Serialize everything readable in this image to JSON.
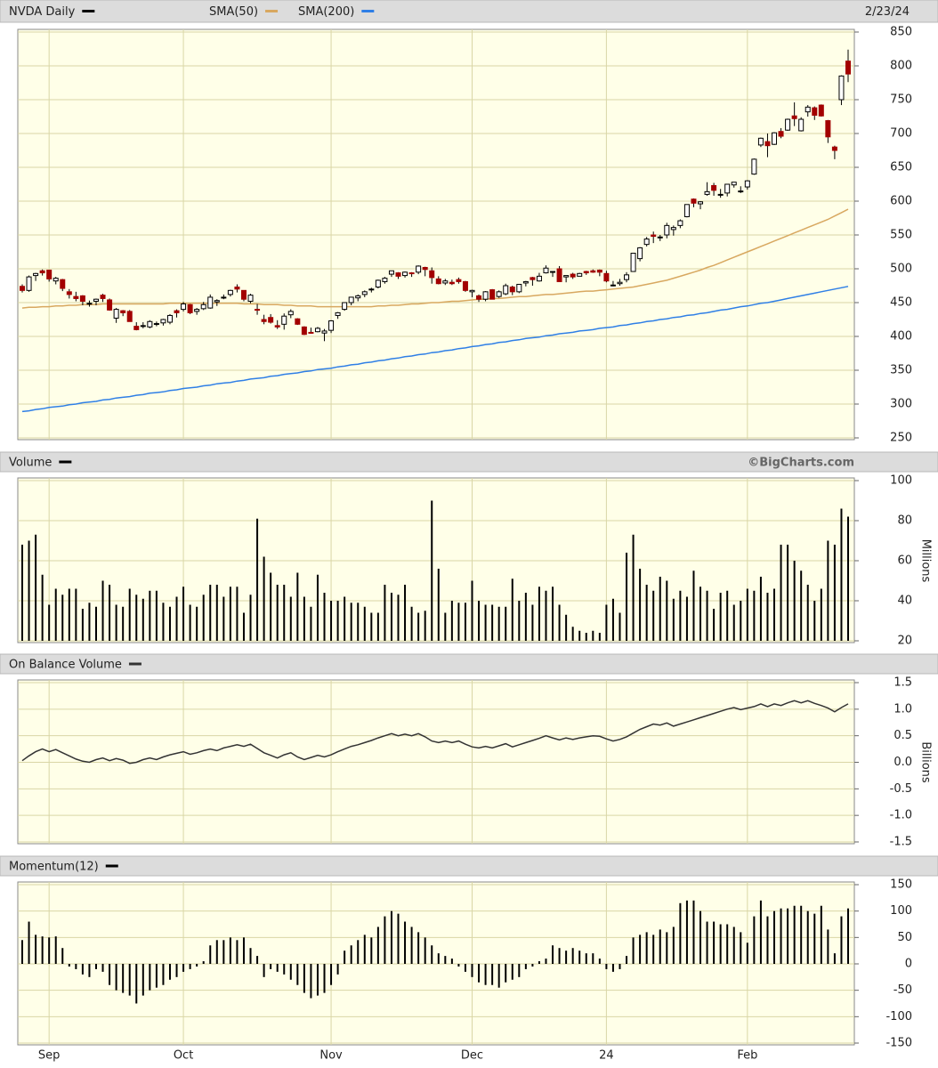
{
  "chart_data": [
    {
      "type": "candlestick",
      "title": "NVDA Daily",
      "color": "#000000",
      "date": "2/23/24",
      "categories": [
        null,
        null,
        null,
        null,
        "Sep",
        null,
        null,
        null,
        null,
        null,
        null,
        null,
        null,
        null,
        null,
        null,
        null,
        null,
        null,
        null,
        null,
        null,
        null,
        null,
        "Oct",
        null,
        null,
        null,
        null,
        null,
        null,
        null,
        null,
        null,
        null,
        null,
        null,
        null,
        null,
        null,
        null,
        null,
        null,
        null,
        null,
        null,
        "Nov",
        null,
        null,
        null,
        null,
        null,
        null,
        null,
        null,
        null,
        null,
        null,
        null,
        null,
        null,
        null,
        null,
        null,
        null,
        null,
        null,
        "Dec",
        null,
        null,
        null,
        null,
        null,
        null,
        null,
        null,
        null,
        null,
        null,
        null,
        null,
        null,
        null,
        null,
        null,
        null,
        null,
        "24",
        null,
        null,
        null,
        null,
        null,
        null,
        null,
        null,
        null,
        null,
        null,
        null,
        null,
        null,
        null,
        null,
        null,
        null,
        null,
        null,
        "Feb",
        null,
        null,
        null,
        null,
        null,
        null,
        null,
        null,
        null,
        null,
        null,
        null,
        null,
        null,
        null
      ],
      "open": [
        474,
        468,
        490,
        497,
        498,
        482,
        484,
        466,
        459,
        460,
        448,
        452,
        461,
        454,
        427,
        438,
        437,
        415,
        415,
        414,
        419,
        420,
        421,
        438,
        440,
        447,
        437,
        441,
        442,
        451,
        457,
        462,
        473,
        468,
        452,
        440,
        425,
        428,
        416,
        418,
        432,
        426,
        414,
        406,
        407,
        405,
        409,
        431,
        440,
        450,
        457,
        462,
        470,
        473,
        481,
        492,
        494,
        490,
        494,
        495,
        502,
        497,
        485,
        479,
        480,
        484,
        481,
        466,
        460,
        455,
        469,
        459,
        463,
        473,
        466,
        479,
        487,
        482,
        494,
        495,
        500,
        488,
        492,
        489,
        496,
        497,
        498,
        493,
        475,
        478,
        484,
        496,
        515,
        536,
        550,
        547,
        550,
        558,
        564,
        577,
        603,
        596,
        610,
        623,
        609,
        612,
        624,
        614,
        621,
        640,
        683,
        688,
        684,
        703,
        705,
        726,
        704,
        732,
        738,
        742,
        719,
        680,
        750,
        807
      ],
      "high": [
        477,
        490,
        494,
        499,
        498,
        488,
        485,
        470,
        466,
        461,
        453,
        456,
        463,
        456,
        442,
        439,
        439,
        421,
        421,
        424,
        422,
        426,
        433,
        440,
        451,
        448,
        442,
        451,
        462,
        455,
        462,
        469,
        477,
        468,
        463,
        448,
        432,
        433,
        424,
        434,
        440,
        427,
        415,
        413,
        414,
        411,
        424,
        436,
        450,
        458,
        462,
        468,
        472,
        484,
        488,
        497,
        495,
        496,
        495,
        505,
        503,
        502,
        489,
        485,
        484,
        487,
        482,
        469,
        462,
        467,
        470,
        468,
        478,
        475,
        477,
        482,
        488,
        494,
        505,
        496,
        504,
        490,
        494,
        494,
        497,
        499,
        499,
        497,
        482,
        485,
        495,
        523,
        532,
        547,
        555,
        550,
        568,
        564,
        573,
        595,
        604,
        600,
        628,
        627,
        618,
        624,
        628,
        622,
        631,
        663,
        694,
        700,
        702,
        708,
        722,
        746,
        724,
        742,
        740,
        743,
        720,
        682,
        786,
        824
      ],
      "low": [
        465,
        466,
        482,
        490,
        481,
        477,
        467,
        456,
        452,
        446,
        444,
        446,
        451,
        438,
        420,
        430,
        422,
        409,
        412,
        412,
        415,
        416,
        418,
        428,
        437,
        433,
        432,
        439,
        441,
        445,
        455,
        459,
        465,
        452,
        449,
        432,
        418,
        419,
        411,
        410,
        427,
        417,
        402,
        404,
        406,
        393,
        405,
        426,
        438,
        446,
        452,
        458,
        465,
        471,
        478,
        488,
        485,
        487,
        488,
        492,
        489,
        478,
        477,
        476,
        476,
        478,
        466,
        458,
        451,
        452,
        455,
        457,
        461,
        461,
        464,
        474,
        475,
        481,
        493,
        488,
        481,
        480,
        485,
        489,
        491,
        494,
        489,
        480,
        474,
        475,
        480,
        496,
        511,
        533,
        538,
        541,
        545,
        549,
        560,
        576,
        591,
        588,
        608,
        608,
        605,
        607,
        620,
        612,
        617,
        639,
        680,
        665,
        683,
        693,
        704,
        711,
        703,
        725,
        720,
        725,
        686,
        662,
        742,
        776
      ],
      "close": [
        468,
        488,
        493,
        494,
        485,
        486,
        471,
        462,
        456,
        452,
        449,
        455,
        456,
        439,
        440,
        435,
        422,
        410,
        416,
        422,
        419,
        425,
        431,
        435,
        448,
        435,
        440,
        447,
        458,
        453,
        458,
        468,
        470,
        455,
        461,
        439,
        422,
        421,
        414,
        430,
        437,
        418,
        403,
        405,
        412,
        408,
        423,
        435,
        450,
        458,
        460,
        466,
        470,
        483,
        486,
        497,
        489,
        495,
        493,
        504,
        499,
        487,
        478,
        482,
        478,
        481,
        468,
        468,
        455,
        466,
        455,
        466,
        475,
        466,
        477,
        481,
        484,
        489,
        501,
        496,
        481,
        490,
        488,
        493,
        494,
        495,
        495,
        482,
        476,
        480,
        491,
        523,
        531,
        544,
        548,
        547,
        564,
        561,
        571,
        595,
        597,
        599,
        614,
        616,
        610,
        625,
        628,
        615,
        630,
        662,
        693,
        682,
        701,
        696,
        721,
        722,
        721,
        739,
        727,
        726,
        695,
        675,
        785,
        788
      ],
      "colors": {
        "up": "#ffffff",
        "down": "#a30000",
        "wick": "#000000"
      },
      "series": [
        {
          "name": "SMA(50)",
          "color": "#d8a860",
          "values": [
            442,
            443,
            443,
            444,
            444,
            445,
            445,
            446,
            446,
            447,
            447,
            447,
            448,
            448,
            448,
            448,
            448,
            448,
            448,
            448,
            448,
            448,
            449,
            449,
            449,
            449,
            449,
            449,
            449,
            449,
            449,
            449,
            449,
            448,
            448,
            448,
            447,
            447,
            447,
            446,
            446,
            445,
            445,
            445,
            444,
            444,
            444,
            444,
            444,
            444,
            444,
            444,
            444,
            445,
            445,
            446,
            446,
            447,
            448,
            448,
            449,
            450,
            450,
            451,
            452,
            452,
            453,
            454,
            455,
            455,
            456,
            456,
            457,
            458,
            459,
            459,
            460,
            461,
            462,
            462,
            463,
            464,
            465,
            466,
            467,
            467,
            468,
            469,
            470,
            471,
            472,
            473,
            475,
            477,
            479,
            481,
            483,
            486,
            489,
            492,
            495,
            498,
            502,
            505,
            509,
            513,
            517,
            521,
            525,
            529,
            533,
            537,
            541,
            545,
            549,
            553,
            557,
            561,
            565,
            569,
            573,
            578,
            583,
            588
          ]
        },
        {
          "name": "SMA(200)",
          "color": "#2f7fe6",
          "values": [
            289,
            290,
            292,
            293,
            295,
            296,
            297,
            299,
            300,
            302,
            303,
            304,
            306,
            307,
            309,
            310,
            311,
            313,
            314,
            316,
            317,
            318,
            320,
            321,
            323,
            324,
            325,
            327,
            328,
            330,
            331,
            332,
            334,
            335,
            337,
            338,
            339,
            341,
            342,
            344,
            345,
            346,
            348,
            349,
            351,
            352,
            353,
            355,
            356,
            358,
            359,
            361,
            362,
            364,
            365,
            367,
            368,
            370,
            371,
            373,
            374,
            376,
            377,
            379,
            380,
            382,
            383,
            385,
            386,
            388,
            389,
            391,
            392,
            394,
            395,
            397,
            398,
            399,
            401,
            402,
            404,
            405,
            406,
            408,
            409,
            410,
            412,
            413,
            414,
            416,
            417,
            419,
            420,
            422,
            423,
            425,
            426,
            428,
            429,
            431,
            432,
            434,
            435,
            437,
            439,
            440,
            442,
            444,
            445,
            447,
            449,
            450,
            452,
            454,
            456,
            458,
            460,
            462,
            464,
            466,
            468,
            470,
            472,
            474
          ]
        }
      ],
      "ylim": [
        250,
        850
      ],
      "yticks": [
        250,
        300,
        350,
        400,
        450,
        500,
        550,
        600,
        650,
        700,
        750,
        800,
        850
      ],
      "grid": true
    },
    {
      "type": "bar",
      "title": "Volume",
      "color": "#000000",
      "source": "©BigCharts.com",
      "y_label": "Millions",
      "values": [
        68,
        70,
        73,
        53,
        38,
        46,
        43,
        46,
        46,
        36,
        39,
        37,
        50,
        48,
        38,
        37,
        46,
        43,
        41,
        45,
        45,
        39,
        37,
        42,
        47,
        38,
        37,
        43,
        48,
        48,
        42,
        47,
        47,
        34,
        43,
        81,
        62,
        54,
        48,
        48,
        42,
        54,
        42,
        37,
        53,
        44,
        40,
        40,
        42,
        39,
        39,
        37,
        34,
        34,
        48,
        44,
        43,
        48,
        37,
        34,
        35,
        90,
        56,
        34,
        40,
        39,
        39,
        50,
        40,
        38,
        38,
        37,
        37,
        51,
        40,
        44,
        38,
        47,
        45,
        47,
        38,
        33,
        27,
        25,
        24,
        25,
        24,
        38,
        41,
        34,
        64,
        73,
        56,
        48,
        45,
        52,
        50,
        41,
        45,
        42,
        55,
        47,
        45,
        36,
        44,
        45,
        38,
        40,
        46,
        45,
        52,
        44,
        46,
        68,
        68,
        60,
        55,
        48,
        40,
        46,
        70,
        68,
        86,
        82
      ],
      "ylim": [
        20,
        100
      ],
      "yticks": [
        20,
        40,
        60,
        80,
        100
      ],
      "grid": true
    },
    {
      "type": "line",
      "title": "On Balance Volume",
      "color": "#333333",
      "y_label": "Billions",
      "values": [
        0.03,
        0.12,
        0.2,
        0.25,
        0.2,
        0.24,
        0.18,
        0.12,
        0.06,
        0.02,
        0.0,
        0.05,
        0.08,
        0.03,
        0.07,
        0.04,
        -0.02,
        0.0,
        0.05,
        0.08,
        0.05,
        0.1,
        0.14,
        0.17,
        0.2,
        0.15,
        0.18,
        0.22,
        0.25,
        0.22,
        0.27,
        0.3,
        0.33,
        0.3,
        0.34,
        0.26,
        0.18,
        0.13,
        0.08,
        0.14,
        0.18,
        0.1,
        0.05,
        0.09,
        0.13,
        0.1,
        0.14,
        0.2,
        0.25,
        0.3,
        0.33,
        0.37,
        0.41,
        0.46,
        0.5,
        0.54,
        0.5,
        0.53,
        0.5,
        0.54,
        0.48,
        0.4,
        0.37,
        0.4,
        0.37,
        0.4,
        0.34,
        0.29,
        0.27,
        0.3,
        0.27,
        0.31,
        0.35,
        0.29,
        0.33,
        0.37,
        0.41,
        0.45,
        0.5,
        0.46,
        0.42,
        0.46,
        0.43,
        0.46,
        0.48,
        0.5,
        0.49,
        0.44,
        0.4,
        0.43,
        0.48,
        0.55,
        0.62,
        0.67,
        0.72,
        0.7,
        0.74,
        0.68,
        0.72,
        0.76,
        0.8,
        0.84,
        0.88,
        0.92,
        0.96,
        1.0,
        1.03,
        0.99,
        1.02,
        1.05,
        1.1,
        1.05,
        1.1,
        1.07,
        1.12,
        1.16,
        1.12,
        1.16,
        1.11,
        1.07,
        1.02,
        0.95,
        1.03,
        1.1
      ],
      "ylim": [
        -1.5,
        1.5
      ],
      "yticks": [
        -1.5,
        {
          "value": -1,
          "label": "-1.0"
        },
        -0.5,
        {
          "value": 0,
          "label": "0.0"
        },
        0.5,
        {
          "value": 1,
          "label": "1.0"
        },
        1.5
      ],
      "grid": true
    },
    {
      "type": "bar",
      "title": "Momentum(12)",
      "color": "#000000",
      "values": [
        45,
        80,
        55,
        52,
        50,
        52,
        30,
        -5,
        -10,
        -20,
        -25,
        -10,
        -15,
        -40,
        -50,
        -55,
        -60,
        -75,
        -60,
        -50,
        -45,
        -40,
        -30,
        -25,
        -15,
        -10,
        -5,
        5,
        35,
        45,
        45,
        50,
        45,
        50,
        30,
        15,
        -25,
        -10,
        -15,
        -20,
        -30,
        -40,
        -55,
        -65,
        -60,
        -55,
        -40,
        -20,
        25,
        35,
        45,
        55,
        50,
        70,
        90,
        100,
        95,
        80,
        70,
        60,
        50,
        35,
        20,
        15,
        10,
        -5,
        -15,
        -25,
        -35,
        -40,
        -40,
        -45,
        -35,
        -30,
        -25,
        -10,
        -5,
        5,
        10,
        35,
        30,
        25,
        30,
        25,
        20,
        20,
        10,
        -10,
        -15,
        -10,
        15,
        50,
        55,
        60,
        55,
        65,
        60,
        70,
        115,
        120,
        120,
        100,
        80,
        80,
        75,
        75,
        70,
        60,
        40,
        90,
        120,
        90,
        100,
        105,
        105,
        110,
        110,
        100,
        95,
        110,
        65,
        20,
        90,
        105
      ],
      "ylim": [
        -150,
        150
      ],
      "yticks": [
        -150,
        -100,
        -50,
        0,
        50,
        100,
        150
      ],
      "grid": true
    }
  ]
}
